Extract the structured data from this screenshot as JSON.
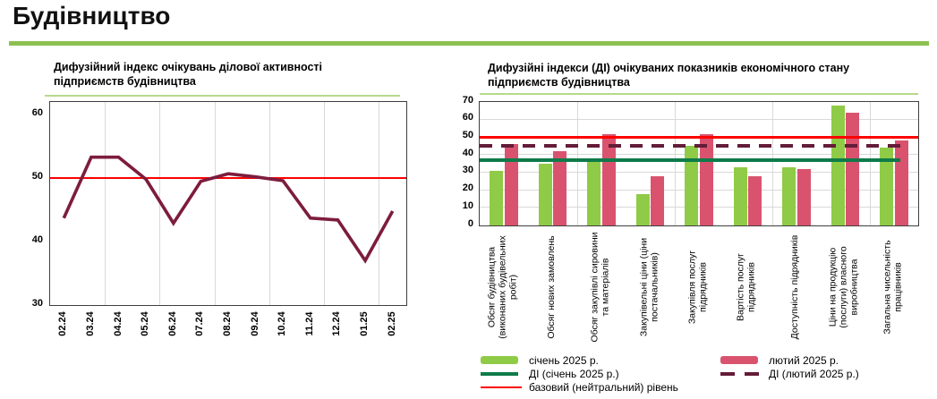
{
  "page_title": "Будівництво",
  "colors": {
    "accent_green": "#8CC152",
    "title_underline_green": "#B5D98C",
    "bar_jan_green": "#8FCB46",
    "bar_feb_rose": "#D9536F",
    "di_jan_line_green": "#0E7B49",
    "di_feb_line_maroon": "#641C38",
    "baseline_red": "#FF0000",
    "index_line_maroon": "#7D1C3E",
    "gridline_gray": "#D9D9D9"
  },
  "chart_data": [
    {
      "id": "diffusion-index-line",
      "type": "line",
      "title": "Дифузійний індекс очікувань ділової активності підприємств будівництва",
      "categories": [
        "02.24",
        "03.24",
        "04.24",
        "05.24",
        "06.24",
        "07.24",
        "08.24",
        "09.24",
        "10.24",
        "11.24",
        "12.24",
        "01.25",
        "02.25"
      ],
      "series": [
        {
          "name": "Дифузійний індекс",
          "values": [
            43.7,
            53.3,
            53.3,
            49.8,
            42.9,
            49.5,
            50.7,
            50.2,
            49.6,
            43.7,
            43.4,
            37.0,
            44.8
          ]
        }
      ],
      "baseline": {
        "label": "базовий (нейтральний) рівень",
        "value": 50
      },
      "ylim": [
        30,
        62
      ],
      "y_ticks": [
        30,
        40,
        50,
        60
      ],
      "grid": "vertical-every-2-categories",
      "legend_position": "none"
    },
    {
      "id": "expected-indicators-bars",
      "type": "bar",
      "title": "Дифузійні індекси (ДІ) очікуваних показників економічного стану підприємств будівництва",
      "categories": [
        "Обсяг будівництва (виконаних будівельних робіт)",
        "Обсяг нових замовлень",
        "Обсяг закупівлі сировини та матеріалів",
        "Закупівельні ціни (ціни постачальників)",
        "Закупівля послуг підрядників",
        "Вартість послуг підрядників",
        "Доступність підрядників",
        "Ціни на продукцію (послуги) власного виробництва",
        "Загальна чисельність працівників"
      ],
      "series": [
        {
          "name": "січень 2025 р.",
          "values": [
            31,
            35,
            36,
            18,
            45,
            33,
            33,
            68,
            44
          ]
        },
        {
          "name": "лютий 2025 р.",
          "values": [
            46,
            42,
            52,
            28,
            52,
            28,
            32,
            64,
            48
          ]
        }
      ],
      "lines": [
        {
          "name": "ДІ (січень 2025 р.)",
          "value": 37,
          "style": "solid"
        },
        {
          "name": "ДІ (лютий 2025 р.)",
          "value": 45,
          "style": "dashed"
        },
        {
          "name": "базовий (нейтральний) рівень",
          "value": 50,
          "style": "solid"
        }
      ],
      "ylim": [
        0,
        70
      ],
      "y_ticks": [
        0,
        10,
        20,
        30,
        40,
        50,
        60,
        70
      ],
      "grid": "horizontal-every-10-and-vertical-every-2-categories",
      "legend_position": "bottom"
    }
  ],
  "legend": {
    "columns": [
      {
        "items": [
          {
            "label": "січень 2025 р.",
            "swatch": "bar-jan"
          },
          {
            "label": "ДІ (січень 2025 р.)",
            "swatch": "line-jan"
          },
          {
            "label": "базовий (нейтральний) рівень",
            "swatch": "line-base"
          }
        ]
      },
      {
        "items": [
          {
            "label": "лютий 2025 р.",
            "swatch": "bar-feb"
          },
          {
            "label": "ДІ (лютий 2025 р.)",
            "swatch": "dash-feb"
          }
        ]
      }
    ]
  }
}
